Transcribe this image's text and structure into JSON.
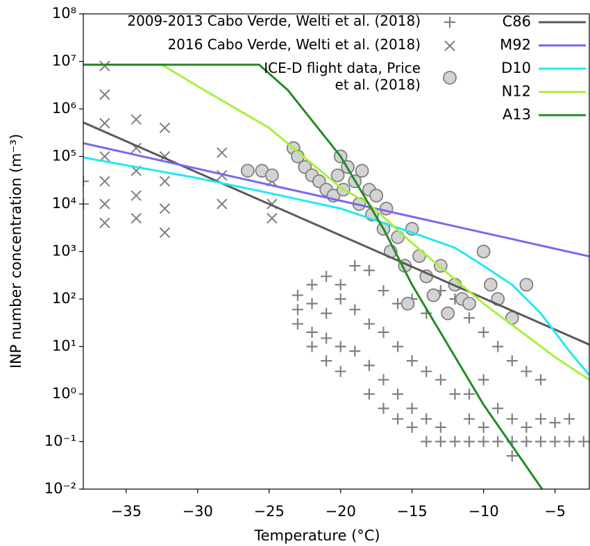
{
  "chart_data": {
    "type": "scatter-line",
    "xlabel": "Temperature (°C)",
    "ylabel": "INP number concentration (m⁻³)",
    "xlim": [
      -38,
      -2.6
    ],
    "ylim": [
      0.01,
      100000000
    ],
    "ylog": true,
    "xticks": [
      {
        "value": -35,
        "label": "−35"
      },
      {
        "value": -30,
        "label": "−30"
      },
      {
        "value": -25,
        "label": "−25"
      },
      {
        "value": -20,
        "label": "−20"
      },
      {
        "value": -15,
        "label": "−15"
      },
      {
        "value": -10,
        "label": "−10"
      },
      {
        "value": -5,
        "label": "−5"
      }
    ],
    "yticks": [
      {
        "value": 0.01,
        "label": "10⁻²"
      },
      {
        "value": 0.1,
        "label": "10⁻¹"
      },
      {
        "value": 1,
        "label": "10⁰"
      },
      {
        "value": 10,
        "label": "10¹"
      },
      {
        "value": 100,
        "label": "10²"
      },
      {
        "value": 1000,
        "label": "10³"
      },
      {
        "value": 10000,
        "label": "10⁴"
      },
      {
        "value": 100000,
        "label": "10⁵"
      },
      {
        "value": 1000000,
        "label": "10⁶"
      },
      {
        "value": 10000000,
        "label": "10⁷"
      },
      {
        "value": 100000000,
        "label": "10⁸"
      }
    ],
    "series": [
      {
        "name": "2009-2013 Cabo Verde, Welti et al. (2018)",
        "kind": "plus",
        "color": "#808080",
        "x": [
          -38,
          -38,
          -23,
          -23,
          -23,
          -22,
          -22,
          -22,
          -22,
          -21,
          -21,
          -21,
          -21,
          -20,
          -20,
          -20,
          -20,
          -19,
          -19,
          -19,
          -18,
          -18,
          -18,
          -18,
          -17,
          -17,
          -17,
          -17,
          -16,
          -16,
          -16,
          -16,
          -15,
          -15,
          -15,
          -15,
          -14,
          -14,
          -14,
          -14,
          -13,
          -13,
          -13,
          -13,
          -12,
          -12,
          -12,
          -11,
          -11,
          -11,
          -11,
          -10,
          -10,
          -10,
          -10,
          -9,
          -9,
          -9,
          -8,
          -8,
          -8,
          -8,
          -7,
          -7,
          -7,
          -6,
          -6,
          -6,
          -5,
          -5,
          -4,
          -4,
          -3
        ],
        "values": [
          10000,
          30000,
          120,
          60,
          30,
          200,
          80,
          20,
          10,
          300,
          50,
          15,
          5,
          200,
          100,
          10,
          3,
          500,
          60,
          8,
          400,
          30,
          4,
          1,
          150,
          20,
          2,
          0.5,
          80,
          10,
          1,
          0.3,
          100,
          5,
          0.5,
          0.2,
          50,
          3,
          0.3,
          0.1,
          150,
          2,
          0.2,
          0.1,
          100,
          1,
          0.1,
          40,
          1,
          0.3,
          0.1,
          20,
          2,
          0.2,
          0.1,
          10,
          0.5,
          0.1,
          5,
          0.3,
          0.1,
          0.05,
          3,
          0.2,
          0.1,
          2,
          0.3,
          0.1,
          0.1,
          0.25,
          0.1,
          0.3,
          0.1
        ]
      },
      {
        "name": "2016 Cabo Verde, Welti et al. (2018)",
        "kind": "cross",
        "color": "#808080",
        "x": [
          -36.5,
          -36.5,
          -36.5,
          -36.5,
          -36.5,
          -36.5,
          -36.5,
          -34.3,
          -34.3,
          -34.3,
          -34.3,
          -34.3,
          -32.3,
          -32.3,
          -32.3,
          -32.3,
          -32.3,
          -28.3,
          -28.3,
          -28.3,
          -24.8,
          -24.8,
          -24.8
        ],
        "values": [
          8000000,
          2000000,
          500000,
          100000,
          30000,
          10000,
          4000,
          600000,
          150000,
          50000,
          15000,
          5000,
          400000,
          100000,
          30000,
          8000,
          2500,
          120000,
          40000,
          10000,
          30000,
          10000,
          5000
        ]
      },
      {
        "name": "ICE-D flight data, Price et al. (2018)",
        "kind": "circle",
        "color": "#808080",
        "fill": "#d3d3d3",
        "x": [
          -26.5,
          -25.5,
          -24.8,
          -23.3,
          -23,
          -22.5,
          -22,
          -21.5,
          -21,
          -20.5,
          -20.2,
          -20,
          -19.8,
          -19.5,
          -19,
          -18.7,
          -18.5,
          -18,
          -17.8,
          -17.5,
          -17,
          -16.8,
          -16.5,
          -16,
          -15.5,
          -15.3,
          -15,
          -14.5,
          -14,
          -13.5,
          -13,
          -12.5,
          -12,
          -11.5,
          -11,
          -10,
          -9.5,
          -9,
          -8,
          -7
        ],
        "values": [
          50000,
          50000,
          40000,
          150000,
          100000,
          60000,
          40000,
          30000,
          20000,
          15000,
          40000,
          100000,
          20000,
          60000,
          30000,
          10000,
          50000,
          20000,
          6000,
          15000,
          3000,
          8000,
          1000,
          2000,
          500,
          80,
          3000,
          800,
          300,
          120,
          500,
          50,
          200,
          100,
          80,
          1000,
          200,
          100,
          40,
          200
        ]
      },
      {
        "name": "C86",
        "kind": "line",
        "color": "#5a5a5a",
        "x": [
          -38,
          -2.6
        ],
        "values": [
          520000,
          11
        ]
      },
      {
        "name": "M92",
        "kind": "line",
        "color": "#7b68ee",
        "x": [
          -38,
          -2.6
        ],
        "values": [
          190000,
          790
        ]
      },
      {
        "name": "D10",
        "kind": "line",
        "color": "#22e8f2",
        "x": [
          -38,
          -30,
          -25,
          -20,
          -15,
          -12,
          -10,
          -8,
          -6,
          -4,
          -2.6
        ],
        "values": [
          95000,
          35000,
          17000,
          8000,
          2500,
          1200,
          500,
          200,
          50,
          8,
          2.5
        ]
      },
      {
        "name": "N12",
        "kind": "line",
        "color": "#a8f03c",
        "x": [
          -38,
          -32.5,
          -30,
          -25,
          -20,
          -18,
          -15,
          -10,
          -5,
          -2.6
        ],
        "values": [
          8500000,
          8500000,
          3000000,
          400000,
          22000,
          10000,
          1500,
          80,
          6,
          2
        ]
      },
      {
        "name": "A13",
        "kind": "line",
        "color": "#228b22",
        "x": [
          -38,
          -25.7,
          -23.7,
          -20,
          -17,
          -15,
          -10,
          -5.9
        ],
        "values": [
          8500000,
          8500000,
          2500000,
          100000,
          3000,
          200,
          0.6,
          0.01
        ]
      }
    ]
  }
}
